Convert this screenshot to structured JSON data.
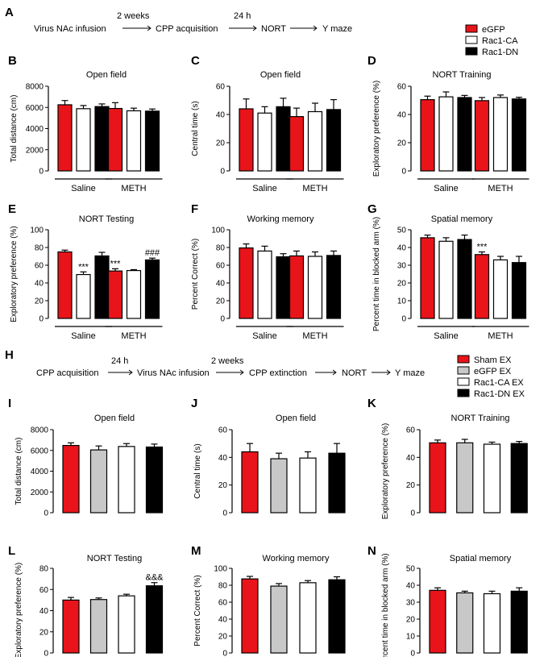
{
  "protocols": {
    "A": {
      "steps": [
        "Virus NAc infusion",
        "CPP acquisition",
        "NORT",
        "Y maze"
      ],
      "intervals": [
        "2 weeks",
        "24 h",
        "",
        ""
      ]
    },
    "H": {
      "steps": [
        "CPP acquisition",
        "Virus NAc infusion",
        "CPP extinction",
        "NORT",
        "Y maze"
      ],
      "intervals": [
        "24 h",
        "2 weeks",
        "",
        ""
      ]
    }
  },
  "legend_top": [
    {
      "label": "eGFP",
      "color": "#e8141a"
    },
    {
      "label": "Rac1-CA",
      "color": "#ffffff"
    },
    {
      "label": "Rac1-DN",
      "color": "#000000"
    }
  ],
  "legend_bottom": [
    {
      "label": "Sham EX",
      "color": "#e8141a"
    },
    {
      "label": "eGFP EX",
      "color": "#c8c8c8"
    },
    {
      "label": "Rac1-CA EX",
      "color": "#ffffff"
    },
    {
      "label": "Rac1-DN EX",
      "color": "#000000"
    }
  ],
  "chart_data": [
    {
      "panel": "B",
      "type": "bar",
      "title": "Open field",
      "ylabel": "Total distance (cm)",
      "ylim": [
        0,
        8000
      ],
      "yticks": [
        "0",
        "2000",
        "4000",
        "6000",
        "8000"
      ],
      "groups": [
        "Saline",
        "METH"
      ],
      "values": [
        [
          6250,
          5880,
          6080
        ],
        [
          5900,
          5680,
          5650
        ]
      ],
      "errors": [
        [
          400,
          300,
          250
        ],
        [
          550,
          250,
          200
        ]
      ],
      "annotations": [
        [
          "",
          "",
          ""
        ],
        [
          "",
          "",
          ""
        ]
      ]
    },
    {
      "panel": "C",
      "type": "bar",
      "title": "Open field",
      "ylabel": "Central time (s)",
      "ylim": [
        0,
        60
      ],
      "yticks": [
        "0",
        "20",
        "40",
        "60"
      ],
      "groups": [
        "Saline",
        "METH"
      ],
      "values": [
        [
          44,
          41,
          45.5
        ],
        [
          38.5,
          42,
          43.5
        ]
      ],
      "errors": [
        [
          7,
          4.5,
          6
        ],
        [
          6,
          6,
          7
        ]
      ],
      "annotations": [
        [
          "",
          "",
          ""
        ],
        [
          "",
          "",
          ""
        ]
      ]
    },
    {
      "panel": "D",
      "type": "bar",
      "title": "NORT Training",
      "ylabel": "Exploratory preference (%)",
      "ylim": [
        0,
        60
      ],
      "yticks": [
        "0",
        "20",
        "40",
        "60"
      ],
      "groups": [
        "Saline",
        "METH"
      ],
      "values": [
        [
          50.5,
          52.5,
          52
        ],
        [
          49.8,
          52,
          51
        ]
      ],
      "errors": [
        [
          2.5,
          3.5,
          1.5
        ],
        [
          2.2,
          1.8,
          1.2
        ]
      ],
      "annotations": [
        [
          "",
          "",
          ""
        ],
        [
          "",
          "",
          ""
        ]
      ]
    },
    {
      "panel": "E",
      "type": "bar",
      "title": "NORT Testing",
      "ylabel": "Exploratory preference (%)",
      "ylim": [
        0,
        100
      ],
      "yticks": [
        "0",
        "20",
        "40",
        "60",
        "80",
        "100"
      ],
      "groups": [
        "Saline",
        "METH"
      ],
      "values": [
        [
          75,
          49.5,
          70.5
        ],
        [
          53.5,
          54,
          66
        ]
      ],
      "errors": [
        [
          2,
          3,
          4
        ],
        [
          2.5,
          1,
          2
        ]
      ],
      "annotations": [
        [
          "",
          "***",
          ""
        ],
        [
          "***",
          "",
          "###"
        ]
      ]
    },
    {
      "panel": "F",
      "type": "bar",
      "title": "Working memory",
      "ylabel": "Percent Correct (%)",
      "ylim": [
        0,
        100
      ],
      "yticks": [
        "0",
        "20",
        "40",
        "60",
        "80",
        "100"
      ],
      "groups": [
        "Saline",
        "METH"
      ],
      "values": [
        [
          79.5,
          76,
          69.5
        ],
        [
          70.5,
          70,
          71
        ]
      ],
      "errors": [
        [
          4.5,
          5.5,
          3.5
        ],
        [
          5.5,
          5,
          5
        ]
      ],
      "annotations": [
        [
          "",
          "",
          ""
        ],
        [
          "",
          "",
          ""
        ]
      ]
    },
    {
      "panel": "G",
      "type": "bar",
      "title": "Spatial memory",
      "ylabel": "Percent time in blocked arm (%)",
      "ylim": [
        0,
        50
      ],
      "yticks": [
        "0",
        "10",
        "20",
        "30",
        "40",
        "50"
      ],
      "groups": [
        "Saline",
        "METH"
      ],
      "values": [
        [
          45.5,
          43.5,
          44.5
        ],
        [
          36,
          33,
          31.5
        ]
      ],
      "errors": [
        [
          1.5,
          2,
          2.5
        ],
        [
          1.5,
          2,
          3.5
        ]
      ],
      "annotations": [
        [
          "",
          "",
          ""
        ],
        [
          "***",
          "",
          ""
        ]
      ]
    },
    {
      "panel": "I",
      "type": "bar",
      "title": "Open field",
      "ylabel": "Total distance (cm)",
      "ylim": [
        0,
        8000
      ],
      "yticks": [
        "0",
        "2000",
        "4000",
        "6000",
        "8000"
      ],
      "values": [
        6480,
        6050,
        6380,
        6330
      ],
      "errors": [
        250,
        380,
        280,
        280
      ],
      "annotations": [
        "",
        "",
        "",
        ""
      ]
    },
    {
      "panel": "J",
      "type": "bar",
      "title": "Open field",
      "ylabel": "Central time (s)",
      "ylim": [
        0,
        60
      ],
      "yticks": [
        "0",
        "20",
        "40",
        "60"
      ],
      "values": [
        44,
        39,
        39.5,
        43
      ],
      "errors": [
        6,
        4,
        4.5,
        7
      ],
      "annotations": [
        "",
        "",
        "",
        ""
      ]
    },
    {
      "panel": "K",
      "type": "bar",
      "title": "NORT Training",
      "ylabel": "Exploratory preference (%)",
      "ylim": [
        0,
        60
      ],
      "yticks": [
        "0",
        "20",
        "40",
        "60"
      ],
      "values": [
        50.5,
        50.5,
        49.5,
        50
      ],
      "errors": [
        2,
        2.5,
        1.5,
        1.5
      ],
      "annotations": [
        "",
        "",
        "",
        ""
      ]
    },
    {
      "panel": "L",
      "type": "bar",
      "title": "NORT Testing",
      "ylabel": "Exploratory preference (%)",
      "ylim": [
        0,
        80
      ],
      "yticks": [
        "0",
        "20",
        "40",
        "60",
        "80"
      ],
      "values": [
        50,
        50.5,
        54,
        63.5
      ],
      "errors": [
        2.5,
        1.5,
        1.5,
        3
      ],
      "annotations": [
        "",
        "",
        "",
        "&&&"
      ]
    },
    {
      "panel": "M",
      "type": "bar",
      "title": "Working memory",
      "ylabel": "Percent Correct (%)",
      "ylim": [
        0,
        100
      ],
      "yticks": [
        "0",
        "20",
        "40",
        "60",
        "80",
        "100"
      ],
      "values": [
        87.5,
        79,
        83,
        86.5
      ],
      "errors": [
        3,
        3,
        2.5,
        3.5
      ],
      "annotations": [
        "",
        "",
        "",
        ""
      ]
    },
    {
      "panel": "N",
      "type": "bar",
      "title": "Spatial memory",
      "ylabel": "Percent time in blocked arm (%)",
      "ylim": [
        0,
        50
      ],
      "yticks": [
        "0",
        "10",
        "20",
        "30",
        "40",
        "50"
      ],
      "values": [
        37,
        35.5,
        35,
        36.5
      ],
      "errors": [
        1.5,
        1,
        1.5,
        2
      ],
      "annotations": [
        "",
        "",
        "",
        ""
      ]
    }
  ]
}
